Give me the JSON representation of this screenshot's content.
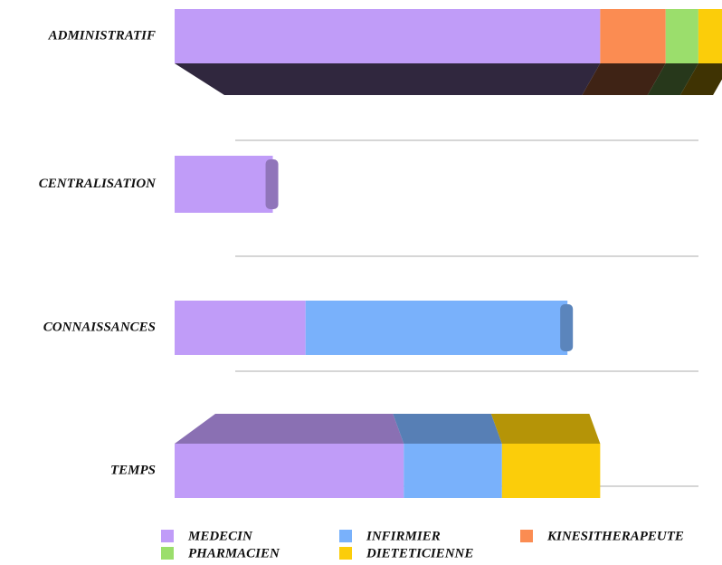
{
  "chart_data": {
    "type": "bar3d",
    "categories": [
      "ADMINISTRATIF",
      "CENTRALISATION",
      "CONNAISSANCES",
      "TEMPS"
    ],
    "series": [
      {
        "name": "MEDECIN",
        "color": "#c09cf8",
        "values": [
          13,
          3,
          4,
          7
        ]
      },
      {
        "name": "INFIRMIER",
        "color": "#79b1fb",
        "values": [
          0,
          0,
          8,
          3
        ]
      },
      {
        "name": "KINESITHERAPEUTE",
        "color": "#fb8c52",
        "values": [
          2,
          0,
          0,
          0
        ]
      },
      {
        "name": "PHARMACIEN",
        "color": "#9bde6c",
        "values": [
          1,
          0,
          0,
          0
        ]
      },
      {
        "name": "DIETETICIENNE",
        "color": "#fbcd0a",
        "values": [
          1,
          0,
          0,
          3
        ]
      }
    ],
    "xlim": [
      0,
      16.5
    ]
  }
}
